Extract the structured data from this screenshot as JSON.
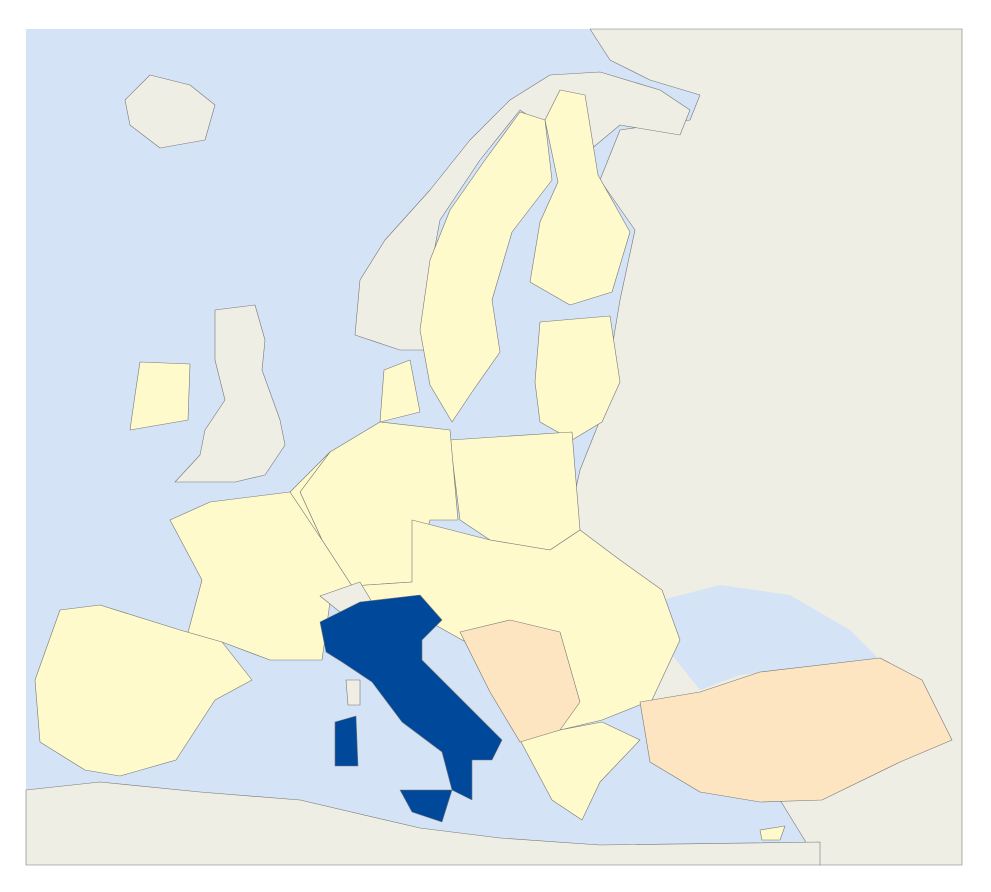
{
  "map": {
    "colors": {
      "sea": "#d4e3f5",
      "non_member": "#efeee5",
      "member": "#fefacb",
      "candidate": "#fde5c1",
      "highlight": "#00489a",
      "border": "#777777"
    },
    "highlighted_region": "italy"
  }
}
